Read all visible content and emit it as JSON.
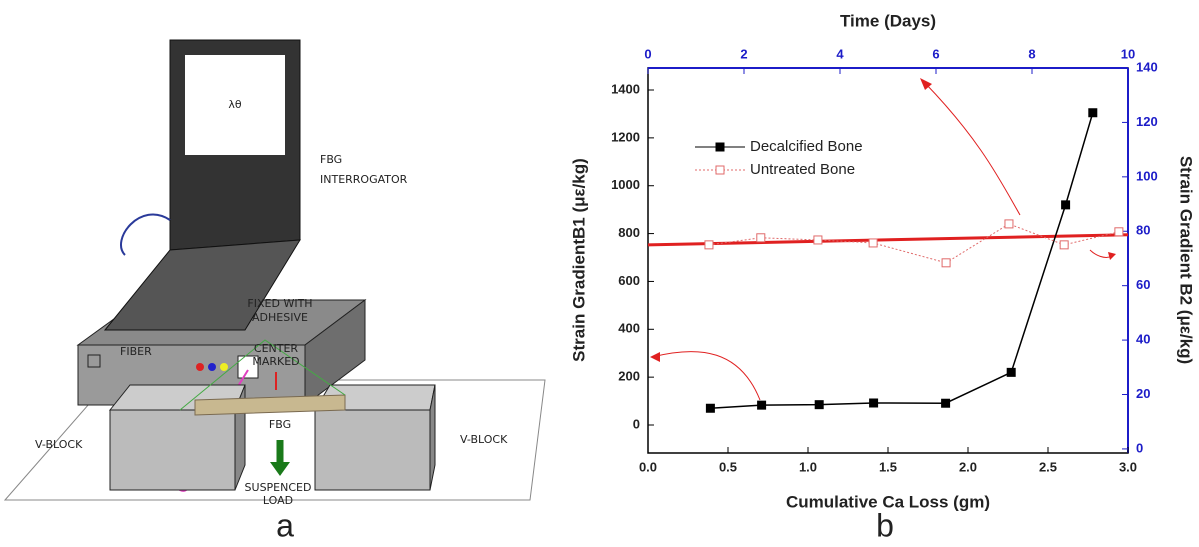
{
  "diagram": {
    "display_symbol": "λθ",
    "interrogator_label": [
      "FBG",
      "INTERROGATOR"
    ],
    "adhesive_label": [
      "FIXED WITH",
      "ADHESIVE"
    ],
    "center_label": [
      "CENTER",
      "MARKED"
    ],
    "fiber_label": "FIBER",
    "vblock_left": "V-BLOCK",
    "vblock_right": "V-BLOCK",
    "fbg_label": "FBG",
    "load_label": [
      "SUSPENCED",
      "LOAD"
    ]
  },
  "panel_labels": [
    "a",
    "b"
  ],
  "chart_data": {
    "type": "line",
    "x2_title": "Time (Days)",
    "x_label": "Cumulative Ca Loss (gm)",
    "y_label": "Strain GradientB1 (με/kg)",
    "y2_label": "Strain Gradient B2 (με/kg)",
    "xlim": [
      0,
      3
    ],
    "xticks": [
      {
        "value": 0,
        "label": "0.0"
      },
      0.5,
      {
        "value": 1,
        "label": "1.0"
      },
      1.5,
      {
        "value": 2,
        "label": "2.0"
      },
      2.5,
      {
        "value": 3,
        "label": "3.0"
      }
    ],
    "x2lim": [
      0,
      10
    ],
    "x2ticks": [
      0,
      2,
      4,
      6,
      8,
      10
    ],
    "ylim": [
      -117,
      1492
    ],
    "yticks": [
      0,
      200,
      400,
      600,
      800,
      1000,
      1200,
      1400
    ],
    "y2lim": [
      -1.5,
      140
    ],
    "y2ticks": [
      0,
      20,
      40,
      60,
      80,
      100,
      120,
      140
    ],
    "secondary_axis_color": "#1c1cc8",
    "series": [
      {
        "name": "Decalcified Bone",
        "color": "#000000",
        "line_style": "solid",
        "marker_filled": true,
        "x": [
          0.39,
          0.71,
          1.07,
          1.41,
          1.86,
          2.27,
          2.61,
          2.78
        ],
        "values": [
          70,
          83,
          85,
          92,
          91,
          220,
          920,
          1305
        ]
      },
      {
        "name": "Untreated Bone",
        "color": "#e06a6a",
        "line_style": "dotted",
        "marker_filled": false,
        "axis": "y2",
        "xaxis": "x2",
        "x": [
          1.27,
          2.35,
          3.54,
          4.69,
          6.21,
          7.52,
          8.67,
          9.81
        ],
        "values": [
          75.0,
          77.6,
          76.8,
          75.7,
          68.4,
          82.7,
          75.0,
          79.8
        ]
      }
    ],
    "trend_line": {
      "color": "#e02020",
      "axis": "y2",
      "xaxis": "x2",
      "x": [
        0,
        10
      ],
      "values": [
        75,
        78.7
      ]
    }
  }
}
